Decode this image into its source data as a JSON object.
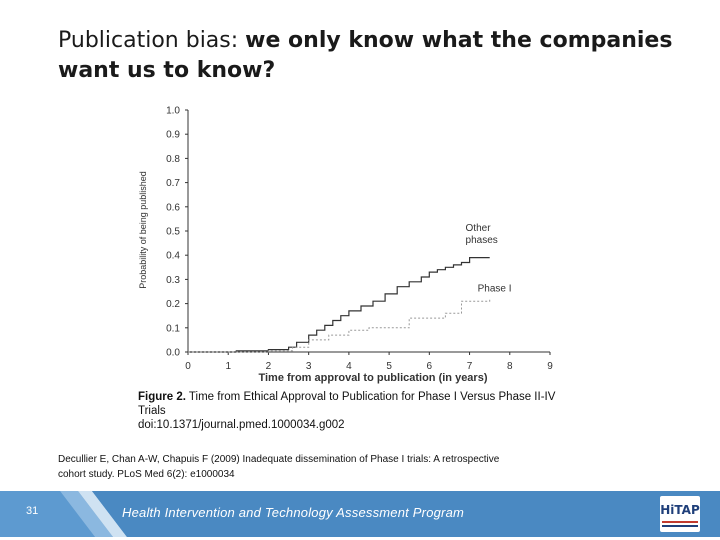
{
  "slide": {
    "title_part1": "Publication bias: ",
    "title_part2": "we only know what the companies want us to know?",
    "figure_label": "Figure 2.",
    "figure_caption": " Time from Ethical Approval to Publication for Phase I Versus Phase II-IV Trials",
    "figure_doi": "doi:10.1371/journal.pmed.1000034.g002",
    "citation": "Decullier E, Chan A-W, Chapuis F (2009) Inadequate dissemination of Phase I trials: A retrospective cohort study. PLoS Med 6(2): e1000034",
    "slide_number": "31",
    "footer_text": "Health Intervention and Technology Assessment Program",
    "logo_text": "HiTAP"
  },
  "colors": {
    "footer_blue": "#4a89c2",
    "other_line": "#333333",
    "phase1_line": "#999999"
  },
  "chart_data": {
    "type": "line",
    "title": "",
    "xlabel": "Time from approval to publication (in years)",
    "ylabel": "Probability of being published",
    "xlim": [
      0,
      9
    ],
    "ylim": [
      0,
      1.0
    ],
    "xticks": [
      0,
      1,
      2,
      3,
      4,
      5,
      6,
      7,
      8,
      9
    ],
    "yticks": [
      "0.0",
      "0.1",
      "0.2",
      "0.3",
      "0.4",
      "0.5",
      "0.6",
      "0.7",
      "0.8",
      "0.9",
      "1.0"
    ],
    "series": [
      {
        "name": "Other phases",
        "style": "solid",
        "x": [
          0,
          1.2,
          2.0,
          2.5,
          2.7,
          3.0,
          3.2,
          3.4,
          3.6,
          3.8,
          4.0,
          4.3,
          4.6,
          4.9,
          5.2,
          5.5,
          5.8,
          6.0,
          6.2,
          6.4,
          6.6,
          6.8,
          7.0,
          7.5
        ],
        "y": [
          0,
          0.005,
          0.01,
          0.02,
          0.04,
          0.07,
          0.09,
          0.11,
          0.13,
          0.15,
          0.17,
          0.19,
          0.21,
          0.24,
          0.27,
          0.29,
          0.31,
          0.33,
          0.34,
          0.35,
          0.36,
          0.37,
          0.39,
          0.39
        ]
      },
      {
        "name": "Phase I",
        "style": "dotted",
        "x": [
          0,
          2.0,
          2.6,
          3.0,
          3.5,
          4.0,
          4.5,
          5.5,
          6.4,
          6.8,
          7.5
        ],
        "y": [
          0,
          0.005,
          0.02,
          0.05,
          0.07,
          0.09,
          0.1,
          0.14,
          0.16,
          0.21,
          0.22
        ]
      }
    ],
    "annotations": [
      {
        "text": "Other\nphases",
        "x": 6.9,
        "y": 0.5
      },
      {
        "text": "Phase I",
        "x": 7.2,
        "y": 0.25
      }
    ],
    "grid": false
  }
}
